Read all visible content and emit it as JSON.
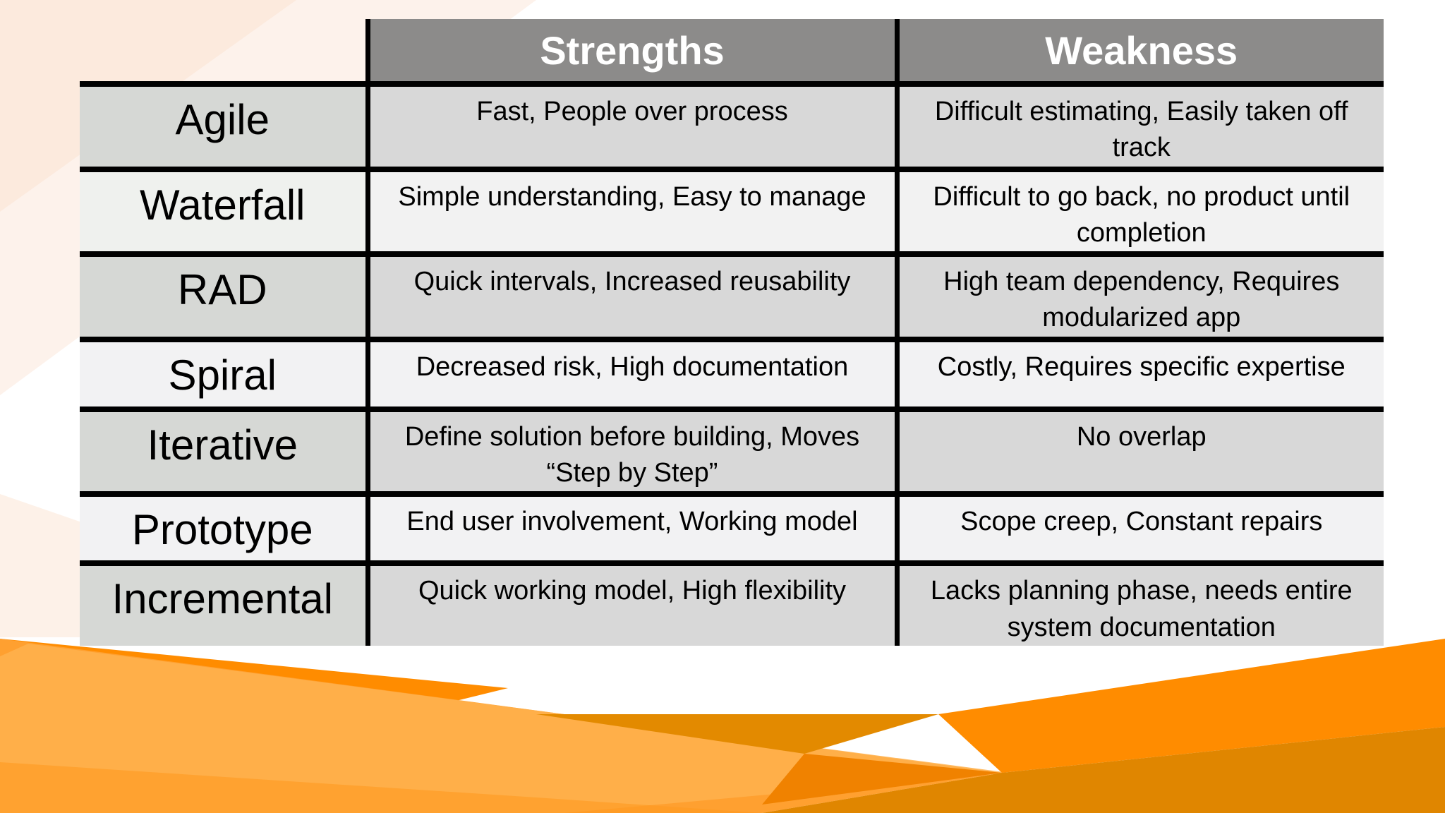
{
  "headers": {
    "strengths": "Strengths",
    "weakness": "Weakness"
  },
  "rows": [
    {
      "method": "Agile",
      "strengths": "Fast, People over process",
      "weakness": "Difficult estimating, Easily taken off track"
    },
    {
      "method": "Waterfall",
      "strengths": "Simple understanding, Easy to manage",
      "weakness": "Difficult to go back, no product until completion"
    },
    {
      "method": "RAD",
      "strengths": "Quick intervals, Increased reusability",
      "weakness": "High team dependency, Requires modularized app"
    },
    {
      "method": "Spiral",
      "strengths": "Decreased risk, High documentation",
      "weakness": "Costly, Requires specific expertise"
    },
    {
      "method": "Iterative",
      "strengths": "Define solution before building, Moves “Step by Step”",
      "weakness": "No overlap"
    },
    {
      "method": "Prototype",
      "strengths": "End user involvement, Working model",
      "weakness": "Scope creep, Constant repairs"
    },
    {
      "method": "Incremental",
      "strengths": "Quick working model, High flexibility",
      "weakness": "Lacks planning phase, needs entire system documentation"
    }
  ],
  "colors": {
    "accent_orange": "#ff8a00",
    "header_gray": "#8c8b8a"
  }
}
